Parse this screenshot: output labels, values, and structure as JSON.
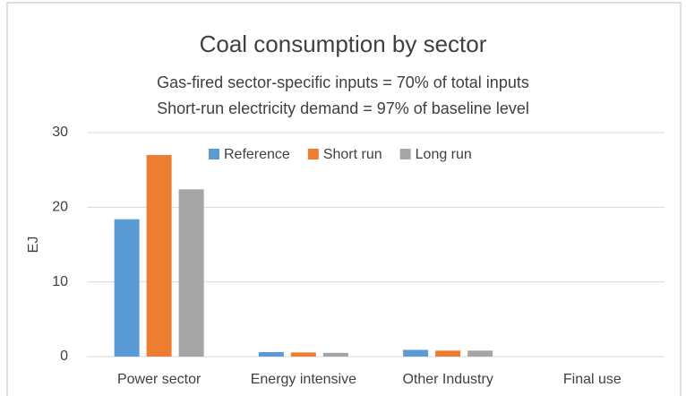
{
  "chart_data": {
    "type": "bar",
    "title": "Coal consumption by sector",
    "subtitle": [
      "Gas-fired sector-specific inputs = 70% of total inputs",
      "Short-run electricity demand = 97% of baseline level"
    ],
    "y_label": "EJ",
    "categories": [
      "Power sector",
      "Energy intensive",
      "Other Industry",
      "Final use"
    ],
    "series": [
      {
        "name": "Reference",
        "color": "#5b9bd5",
        "values": [
          18.4,
          0.6,
          0.9,
          0
        ]
      },
      {
        "name": "Short run",
        "color": "#ed7d31",
        "values": [
          27,
          0.55,
          0.8,
          0
        ]
      },
      {
        "name": "Long run",
        "color": "#a5a5a5",
        "values": [
          22.4,
          0.5,
          0.8,
          0
        ]
      }
    ],
    "ylim": [
      0,
      30
    ],
    "yticks": [
      0,
      10,
      20,
      30
    ],
    "grid": true,
    "legend": "top"
  }
}
